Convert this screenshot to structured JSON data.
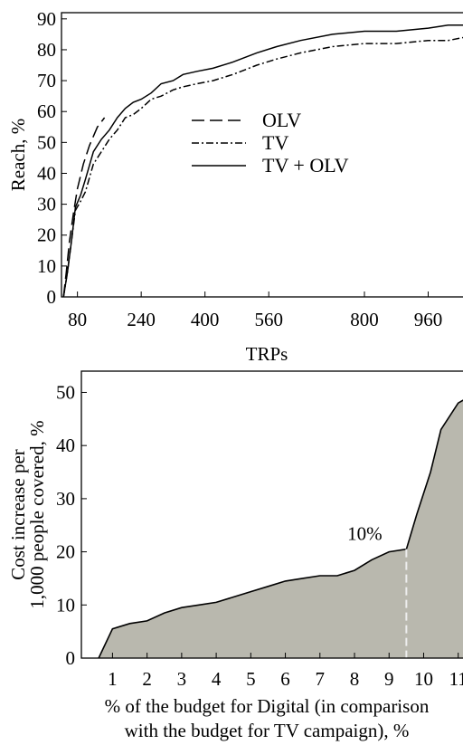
{
  "chart_data": [
    {
      "type": "line",
      "xlabel": "TRPs",
      "ylabel": "Reach, %",
      "xlim": [
        40,
        1070
      ],
      "ylim": [
        0,
        92
      ],
      "x_ticks": [
        "80",
        "240",
        "400",
        "560",
        "800",
        "960"
      ],
      "x_tick_values": [
        80,
        240,
        400,
        560,
        800,
        960
      ],
      "y_ticks": [
        "0",
        "10",
        "20",
        "30",
        "40",
        "50",
        "60",
        "70",
        "80",
        "90"
      ],
      "y_tick_values": [
        0,
        10,
        20,
        30,
        40,
        50,
        60,
        70,
        80,
        90
      ],
      "legend_position": "center",
      "series": [
        {
          "name": "OLV",
          "style": "dashed",
          "points": [
            [
              45,
              0
            ],
            [
              52,
              8
            ],
            [
              60,
              18
            ],
            [
              70,
              27
            ],
            [
              80,
              35
            ],
            [
              95,
              43
            ],
            [
              110,
              49
            ],
            [
              130,
              55
            ],
            [
              148,
              58
            ]
          ]
        },
        {
          "name": "TV",
          "style": "dashdot",
          "points": [
            [
              45,
              0
            ],
            [
              55,
              8
            ],
            [
              65,
              18
            ],
            [
              75,
              28
            ],
            [
              88,
              31
            ],
            [
              100,
              34
            ],
            [
              120,
              43
            ],
            [
              140,
              47
            ],
            [
              160,
              51
            ],
            [
              180,
              54
            ],
            [
              200,
              58
            ],
            [
              220,
              59
            ],
            [
              240,
              61
            ],
            [
              265,
              64
            ],
            [
              290,
              65
            ],
            [
              320,
              67
            ],
            [
              345,
              68
            ],
            [
              380,
              69
            ],
            [
              420,
              70
            ],
            [
              470,
              72
            ],
            [
              530,
              75
            ],
            [
              580,
              77
            ],
            [
              640,
              79
            ],
            [
              720,
              81
            ],
            [
              800,
              82
            ],
            [
              880,
              82
            ],
            [
              960,
              83
            ],
            [
              1010,
              83
            ],
            [
              1050,
              84
            ]
          ]
        },
        {
          "name": "TV + OLV",
          "style": "solid",
          "points": [
            [
              45,
              0
            ],
            [
              55,
              8
            ],
            [
              65,
              18
            ],
            [
              75,
              29
            ],
            [
              88,
              33
            ],
            [
              100,
              38
            ],
            [
              120,
              47
            ],
            [
              140,
              51
            ],
            [
              160,
              54
            ],
            [
              180,
              58
            ],
            [
              200,
              61
            ],
            [
              220,
              63
            ],
            [
              240,
              64
            ],
            [
              265,
              66
            ],
            [
              290,
              69
            ],
            [
              320,
              70
            ],
            [
              345,
              72
            ],
            [
              380,
              73
            ],
            [
              420,
              74
            ],
            [
              470,
              76
            ],
            [
              530,
              79
            ],
            [
              580,
              81
            ],
            [
              640,
              83
            ],
            [
              720,
              85
            ],
            [
              800,
              86
            ],
            [
              880,
              86
            ],
            [
              960,
              87
            ],
            [
              1010,
              88
            ],
            [
              1050,
              88
            ]
          ]
        }
      ]
    },
    {
      "type": "area",
      "xlabel": "% of the budget for Digital (in comparison with the budget for TV campaign), %",
      "xlabel_lines": [
        "% of the budget for Digital (in comparison",
        "with the budget for TV campaign), %"
      ],
      "ylabel": "Cost increase per 1,000 people covered, %",
      "ylabel_lines": [
        "Cost increase per",
        "1,000 people covered, %"
      ],
      "xlim": [
        0.1,
        11.4
      ],
      "ylim": [
        0,
        54
      ],
      "x_ticks": [
        "1",
        "2",
        "3",
        "4",
        "5",
        "6",
        "7",
        "8",
        "9",
        "10",
        "11"
      ],
      "x_tick_values": [
        1,
        2,
        3,
        4,
        5,
        6,
        7,
        8,
        9,
        10,
        11
      ],
      "y_ticks": [
        "0",
        "10",
        "20",
        "30",
        "40",
        "50"
      ],
      "y_tick_values": [
        0,
        10,
        20,
        30,
        40,
        50
      ],
      "fill_color": "#b9b8ae",
      "marker_line_color": "#eeeeee",
      "annotation": {
        "text": "10%",
        "x": 9.5,
        "y": 20.5
      },
      "points": [
        [
          0.6,
          0
        ],
        [
          1.0,
          5.5
        ],
        [
          1.5,
          6.5
        ],
        [
          2.0,
          7.0
        ],
        [
          2.5,
          8.5
        ],
        [
          3.0,
          9.5
        ],
        [
          3.5,
          10.0
        ],
        [
          4.0,
          10.5
        ],
        [
          4.5,
          11.5
        ],
        [
          5.0,
          12.5
        ],
        [
          5.5,
          13.5
        ],
        [
          6.0,
          14.5
        ],
        [
          6.5,
          15.0
        ],
        [
          7.0,
          15.5
        ],
        [
          7.5,
          15.5
        ],
        [
          8.0,
          16.5
        ],
        [
          8.5,
          18.5
        ],
        [
          9.0,
          20.0
        ],
        [
          9.5,
          20.5
        ],
        [
          9.8,
          27.0
        ],
        [
          10.2,
          35.0
        ],
        [
          10.5,
          43.0
        ],
        [
          11.0,
          48.0
        ],
        [
          11.4,
          49.5
        ]
      ]
    }
  ]
}
